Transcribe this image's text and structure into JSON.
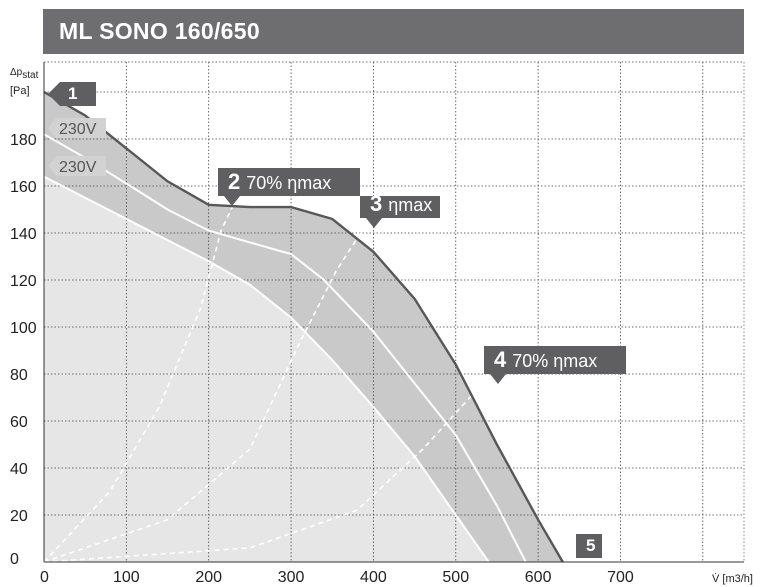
{
  "title": "ML SONO 160/650",
  "chart_data": {
    "type": "line",
    "xlabel": "V̇ [m3/h]",
    "ylabel_main": "Δp",
    "ylabel_sub": "stat",
    "ylabel_unit": "[Pa]",
    "xlim": [
      0,
      850
    ],
    "ylim": [
      0,
      200
    ],
    "x_ticks": [
      "0",
      "100",
      "200",
      "300",
      "400",
      "500",
      "600",
      "700"
    ],
    "y_ticks": [
      "0",
      "20",
      "40",
      "60",
      "80",
      "100",
      "120",
      "140",
      "160",
      "180"
    ],
    "grid": true,
    "series": [
      {
        "role": "max-curve",
        "points": [
          [
            0,
            200
          ],
          [
            50,
            190
          ],
          [
            100,
            176
          ],
          [
            150,
            162
          ],
          [
            200,
            152
          ],
          [
            250,
            151
          ],
          [
            300,
            151
          ],
          [
            350,
            146
          ],
          [
            400,
            132
          ],
          [
            450,
            112
          ],
          [
            500,
            84
          ],
          [
            550,
            50
          ],
          [
            600,
            18
          ],
          [
            630,
            0
          ]
        ]
      },
      {
        "role": "mid-curve",
        "points": [
          [
            0,
            182
          ],
          [
            50,
            172
          ],
          [
            100,
            161
          ],
          [
            150,
            150
          ],
          [
            200,
            141
          ],
          [
            250,
            136
          ],
          [
            300,
            131
          ],
          [
            340,
            120
          ],
          [
            400,
            98
          ],
          [
            450,
            76
          ],
          [
            500,
            54
          ],
          [
            550,
            24
          ],
          [
            585,
            0
          ]
        ]
      },
      {
        "role": "min-curve",
        "points": [
          [
            0,
            164
          ],
          [
            50,
            155
          ],
          [
            100,
            146
          ],
          [
            150,
            137
          ],
          [
            200,
            128
          ],
          [
            250,
            118
          ],
          [
            300,
            104
          ],
          [
            350,
            86
          ],
          [
            400,
            66
          ],
          [
            450,
            45
          ],
          [
            500,
            20
          ],
          [
            540,
            0
          ]
        ]
      }
    ],
    "efficiency_lines": [
      {
        "role": "line-2",
        "points": [
          [
            0,
            0
          ],
          [
            80,
            30
          ],
          [
            140,
            66
          ],
          [
            190,
            108
          ],
          [
            215,
            141
          ],
          [
            230,
            152
          ]
        ]
      },
      {
        "role": "line-3",
        "points": [
          [
            0,
            0
          ],
          [
            150,
            18
          ],
          [
            250,
            48
          ],
          [
            310,
            93
          ],
          [
            355,
            124
          ],
          [
            390,
            143
          ]
        ]
      },
      {
        "role": "line-4",
        "points": [
          [
            0,
            0
          ],
          [
            250,
            6
          ],
          [
            380,
            22
          ],
          [
            460,
            48
          ],
          [
            530,
            75
          ]
        ]
      }
    ],
    "labels": [
      {
        "id": "p1",
        "num": "1",
        "text": ""
      },
      {
        "id": "p2",
        "num": "2",
        "text": "70% ηmax"
      },
      {
        "id": "p3",
        "num": "3",
        "text": "ηmax"
      },
      {
        "id": "p4",
        "num": "4",
        "text": "70% ηmax"
      },
      {
        "id": "p5",
        "num": "5",
        "text": ""
      },
      {
        "id": "v1",
        "num": "",
        "text": "230V"
      },
      {
        "id": "v2",
        "num": "",
        "text": "230V"
      }
    ]
  },
  "colors": {
    "title_bg": "#6e6e70",
    "band_dark": "#c9c9c9",
    "band_light": "#e6e6e6",
    "curve_dark": "#575757",
    "callout": "#5f5f61",
    "voltage_label_bg": "#d2d2d2"
  }
}
